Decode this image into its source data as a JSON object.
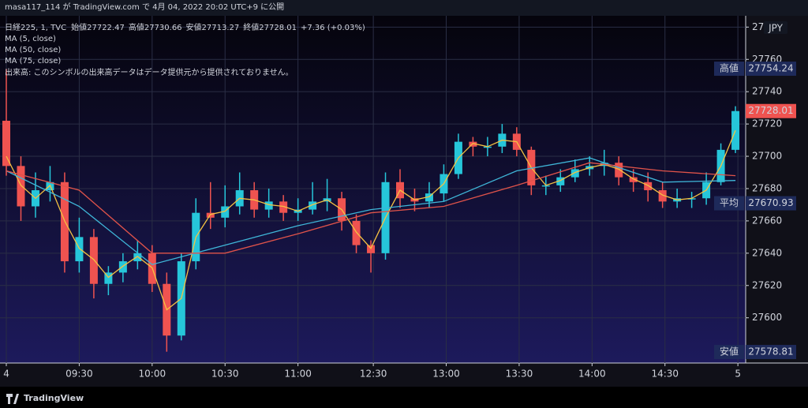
{
  "header": {
    "title": "masa117_114 が TradingView.com で 4月 04, 2022 20:02 UTC+9 に公開"
  },
  "legend": {
    "symbol": "日経225, 1, TVC",
    "fields": [
      {
        "label": "始値",
        "value": 27722.47
      },
      {
        "label": "高値",
        "value": 27730.66
      },
      {
        "label": "安値",
        "value": 27713.27
      },
      {
        "label": "終値",
        "value": 27728.01
      }
    ],
    "change": "+7.36 (+0.03%)",
    "notice": "出来高: このシンボルの出来高データはデータ提供元から提供されておりません。"
  },
  "chart_data": {
    "type": "candlestick",
    "currency": "JPY",
    "up_color": "#26c6da",
    "down_color": "#ef5350",
    "grid": true,
    "xlim": [
      -2.6,
      304.2
    ],
    "ylim": [
      27572,
      27787
    ],
    "xticks": [
      {
        "value": 0,
        "label": "4"
      },
      {
        "value": 30,
        "label": "09:30"
      },
      {
        "value": 60,
        "label": "10:00"
      },
      {
        "value": 90,
        "label": "10:30"
      },
      {
        "value": 120,
        "label": "11:00"
      },
      {
        "value": 151,
        "label": "12:30"
      },
      {
        "value": 181,
        "label": "13:00"
      },
      {
        "value": 211,
        "label": "13:30"
      },
      {
        "value": 241,
        "label": "14:00"
      },
      {
        "value": 271,
        "label": "14:30"
      },
      {
        "value": 301,
        "label": "5"
      }
    ],
    "yticks": [
      27600,
      27620,
      27640,
      27660,
      27680,
      27700,
      27720,
      27740,
      27760,
      27780
    ],
    "x": [
      0,
      6,
      12,
      18,
      24,
      30,
      36,
      42,
      48,
      54,
      60,
      66,
      72,
      78,
      84,
      90,
      96,
      102,
      108,
      114,
      120,
      126,
      132,
      138,
      144,
      150,
      156,
      162,
      168,
      174,
      180,
      186,
      192,
      198,
      204,
      210,
      216,
      222,
      228,
      234,
      240,
      246,
      252,
      258,
      264,
      270,
      276,
      282,
      288,
      294,
      300
    ],
    "open": [
      27722,
      27694,
      27669,
      27679,
      27684,
      27635,
      27650,
      27621,
      27628,
      27635,
      27640,
      27621,
      27589,
      27635,
      27665,
      27662,
      27669,
      27679,
      27667,
      27672,
      27665,
      27667,
      27672,
      27674,
      27660,
      27645,
      27640,
      27684,
      27674,
      27672,
      27677,
      27689,
      27709,
      27706,
      27706,
      27714,
      27704,
      27682,
      27682,
      27687,
      27692,
      27694,
      27696,
      27687,
      27684,
      27679,
      27672,
      27674,
      27674,
      27684,
      27704
    ],
    "high": [
      27754,
      27700,
      27690,
      27694,
      27690,
      27662,
      27655,
      27632,
      27640,
      27648,
      27645,
      27628,
      27640,
      27674,
      27684,
      27682,
      27690,
      27684,
      27680,
      27676,
      27674,
      27684,
      27686,
      27678,
      27664,
      27648,
      27690,
      27692,
      27680,
      27684,
      27695,
      27714,
      27712,
      27712,
      27720,
      27718,
      27706,
      27688,
      27692,
      27698,
      27700,
      27704,
      27700,
      27692,
      27690,
      27684,
      27680,
      27678,
      27690,
      27708,
      27731
    ],
    "low": [
      27688,
      27660,
      27662,
      27672,
      27628,
      27628,
      27612,
      27614,
      27622,
      27630,
      27616,
      27579,
      27586,
      27630,
      27655,
      27656,
      27664,
      27662,
      27662,
      27660,
      27660,
      27664,
      27666,
      27654,
      27640,
      27628,
      27636,
      27668,
      27666,
      27668,
      27672,
      27686,
      27700,
      27700,
      27702,
      27700,
      27676,
      27676,
      27678,
      27684,
      27688,
      27688,
      27682,
      27678,
      27672,
      27668,
      27668,
      27668,
      27670,
      27682,
      27702
    ],
    "close": [
      27694,
      27669,
      27679,
      27684,
      27635,
      27650,
      27621,
      27628,
      27635,
      27640,
      27621,
      27589,
      27635,
      27665,
      27662,
      27669,
      27679,
      27667,
      27672,
      27665,
      27667,
      27672,
      27674,
      27660,
      27645,
      27640,
      27684,
      27674,
      27672,
      27677,
      27689,
      27709,
      27706,
      27706,
      27714,
      27704,
      27682,
      27682,
      27687,
      27692,
      27694,
      27696,
      27687,
      27684,
      27679,
      27672,
      27674,
      27674,
      27684,
      27704,
      27728
    ],
    "series": [
      {
        "name": "MA (5, close)",
        "color": "#f5c242",
        "x": [
          0,
          6,
          12,
          18,
          24,
          30,
          36,
          42,
          48,
          54,
          60,
          66,
          72,
          78,
          84,
          90,
          96,
          102,
          108,
          114,
          120,
          126,
          132,
          138,
          144,
          150,
          156,
          162,
          168,
          174,
          180,
          186,
          192,
          198,
          204,
          210,
          216,
          222,
          228,
          234,
          240,
          246,
          252,
          258,
          264,
          270,
          276,
          282,
          288,
          294,
          300
        ],
        "values": [
          27700,
          27682,
          27674,
          27682,
          27660,
          27643,
          27636,
          27625,
          27632,
          27638,
          27631,
          27605,
          27612,
          27650,
          27664,
          27666,
          27674,
          27673,
          27670,
          27669,
          27666,
          27670,
          27673,
          27667,
          27653,
          27643,
          27662,
          27679,
          27673,
          27675,
          27683,
          27699,
          27708,
          27706,
          27710,
          27709,
          27693,
          27682,
          27685,
          27690,
          27693,
          27695,
          27692,
          27686,
          27682,
          27676,
          27673,
          27674,
          27679,
          27694,
          27716
        ]
      },
      {
        "name": "MA (50, close)",
        "color": "#3fb6d8",
        "x": [
          0,
          30,
          60,
          90,
          120,
          150,
          180,
          210,
          240,
          270,
          300
        ],
        "values": [
          27691,
          27669,
          27633,
          27645,
          27657,
          27667,
          27672,
          27691,
          27699,
          27684,
          27685
        ]
      },
      {
        "name": "MA (75, close)",
        "color": "#e0534a",
        "x": [
          0,
          30,
          60,
          90,
          120,
          150,
          180,
          210,
          240,
          270,
          300
        ],
        "values": [
          27691,
          27679,
          27640,
          27640,
          27652,
          27665,
          27669,
          27682,
          27696,
          27691,
          27688
        ]
      }
    ],
    "price_labels": [
      {
        "label": "高値",
        "value": 27754.24
      },
      {
        "label": "平均",
        "value": 27670.93
      },
      {
        "label": "安値",
        "value": 27578.81
      }
    ]
  },
  "footer": {
    "brand": "TradingView"
  }
}
